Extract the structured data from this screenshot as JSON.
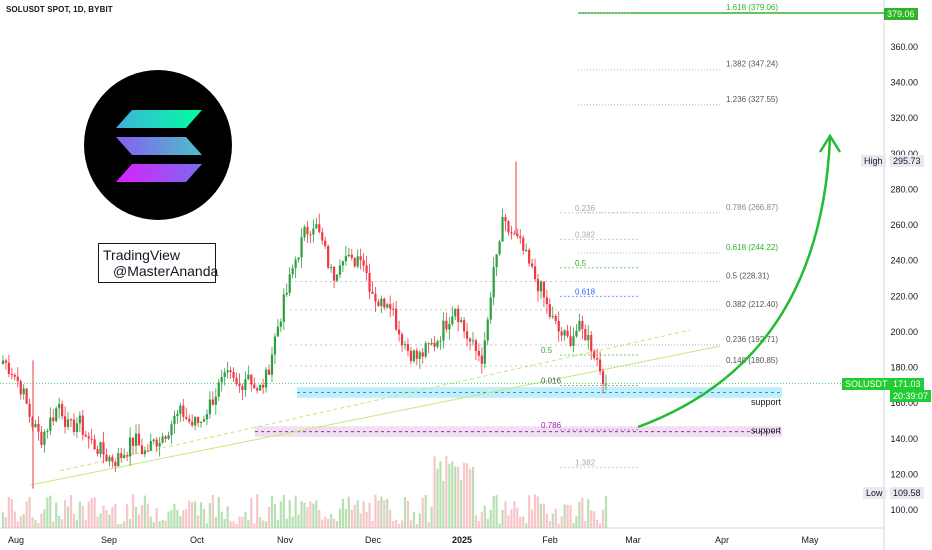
{
  "title": "SOLUSDT SPOT, 1D, BYBIT",
  "watermark": {
    "line1": "TradingView",
    "line2": "@MasterAnanda"
  },
  "logo": {
    "name": "solana-logo",
    "colors": [
      "#00ffa3",
      "#3fb0d8",
      "#dc1fff"
    ]
  },
  "colors": {
    "up": "#089981",
    "up_candle": "#2e9e3e",
    "down": "#f23645",
    "support_blue": "#bfeff8",
    "support_purple": "#f0dff0",
    "green_label": "#2db528",
    "arrow": "#22bb33"
  },
  "price_axis": {
    "ticks": [
      "360.00",
      "340.00",
      "320.00",
      "300.00",
      "280.00",
      "260.00",
      "240.00",
      "220.00",
      "200.00",
      "180.00",
      "160.00",
      "140.00",
      "120.00",
      "100.00"
    ],
    "tick_values": [
      360,
      340,
      320,
      300,
      280,
      260,
      240,
      220,
      200,
      180,
      160,
      140,
      120,
      100
    ]
  },
  "time_axis": {
    "labels": [
      "Aug",
      "Sep",
      "Oct",
      "Nov",
      "Dec",
      "2025",
      "Feb",
      "Mar",
      "Apr",
      "May"
    ]
  },
  "tags": {
    "target": "379.06",
    "high_label": "High",
    "high_value": "295.73",
    "symbol": "SOLUSDT",
    "last_price": "171.03",
    "countdown": "20:39:07",
    "low_label": "Low",
    "low_value": "109.58"
  },
  "fib_right": [
    {
      "text": "1.618 (379.06)",
      "price": 379.06,
      "color": "#2db528"
    },
    {
      "text": "1.382 (347.24)",
      "price": 347.24,
      "color": "#555555"
    },
    {
      "text": "1.236 (327.55)",
      "price": 327.55,
      "color": "#555555"
    },
    {
      "text": "0.786 (266.87)",
      "price": 266.87,
      "color": "#888888"
    },
    {
      "text": "0.618 (244.22)",
      "price": 244.22,
      "color": "#2db528"
    },
    {
      "text": "0.5 (228.31)",
      "price": 228.31,
      "color": "#555555"
    },
    {
      "text": "0.382 (212.40)",
      "price": 212.4,
      "color": "#555555"
    },
    {
      "text": "0.236 (192.71)",
      "price": 192.71,
      "color": "#555555"
    },
    {
      "text": "0.148 (180.85)",
      "price": 180.85,
      "color": "#555555"
    }
  ],
  "fib_mid": [
    {
      "text": "0.236",
      "price": 266.87,
      "color": "#aaaaaa"
    },
    {
      "text": "0.382",
      "price": 252.0,
      "color": "#aaaaaa"
    },
    {
      "text": "0.5",
      "price": 236.0,
      "color": "#2db528"
    },
    {
      "text": "0.618",
      "price": 220.0,
      "color": "#2962ff"
    },
    {
      "text": "0.5",
      "price": 187.0,
      "color": "#2db528"
    },
    {
      "text": "0.016",
      "price": 170.0,
      "color": "#555555"
    },
    {
      "text": "0.786",
      "price": 145.0,
      "color": "#9c27b0"
    },
    {
      "text": "1.382",
      "price": 124.0,
      "color": "#aaaaaa"
    }
  ],
  "support_labels": {
    "blue": "support",
    "purple": "support"
  },
  "support_zones": [
    {
      "low": 163,
      "high": 169
    },
    {
      "low": 141,
      "high": 147
    }
  ],
  "chart_data": {
    "type": "candlestick",
    "symbol": "SOLUSDT",
    "x_labels": [
      "Aug",
      "Sep",
      "Oct",
      "Nov",
      "Dec",
      "2025",
      "Feb",
      "Mar",
      "Apr",
      "May"
    ],
    "ylim": [
      90,
      385
    ],
    "series": [
      {
        "month": "Aug",
        "closes": [
          184,
          178,
          168,
          150,
          140,
          150,
          160,
          145,
          150
        ]
      },
      {
        "month": "Sep",
        "closes": [
          140,
          135,
          130,
          128,
          133,
          140,
          132,
          138
        ]
      },
      {
        "month": "Oct",
        "closes": [
          142,
          150,
          155,
          148,
          150,
          160,
          170,
          175,
          168,
          178
        ]
      },
      {
        "month": "Nov",
        "closes": [
          165,
          175,
          200,
          220,
          240,
          255,
          262,
          248,
          230
        ]
      },
      {
        "month": "Dec",
        "closes": [
          245,
          238,
          245,
          225,
          215,
          220,
          200,
          190,
          185,
          190
        ]
      },
      {
        "month": "2025",
        "closes": [
          195,
          205,
          215,
          200,
          190,
          185,
          230,
          260,
          255,
          248,
          235
        ]
      },
      {
        "month": "Feb",
        "closes": [
          225,
          210,
          200,
          195,
          202,
          198,
          185,
          171
        ]
      }
    ],
    "high": 295.73,
    "low": 109.58,
    "last": 171.03
  }
}
